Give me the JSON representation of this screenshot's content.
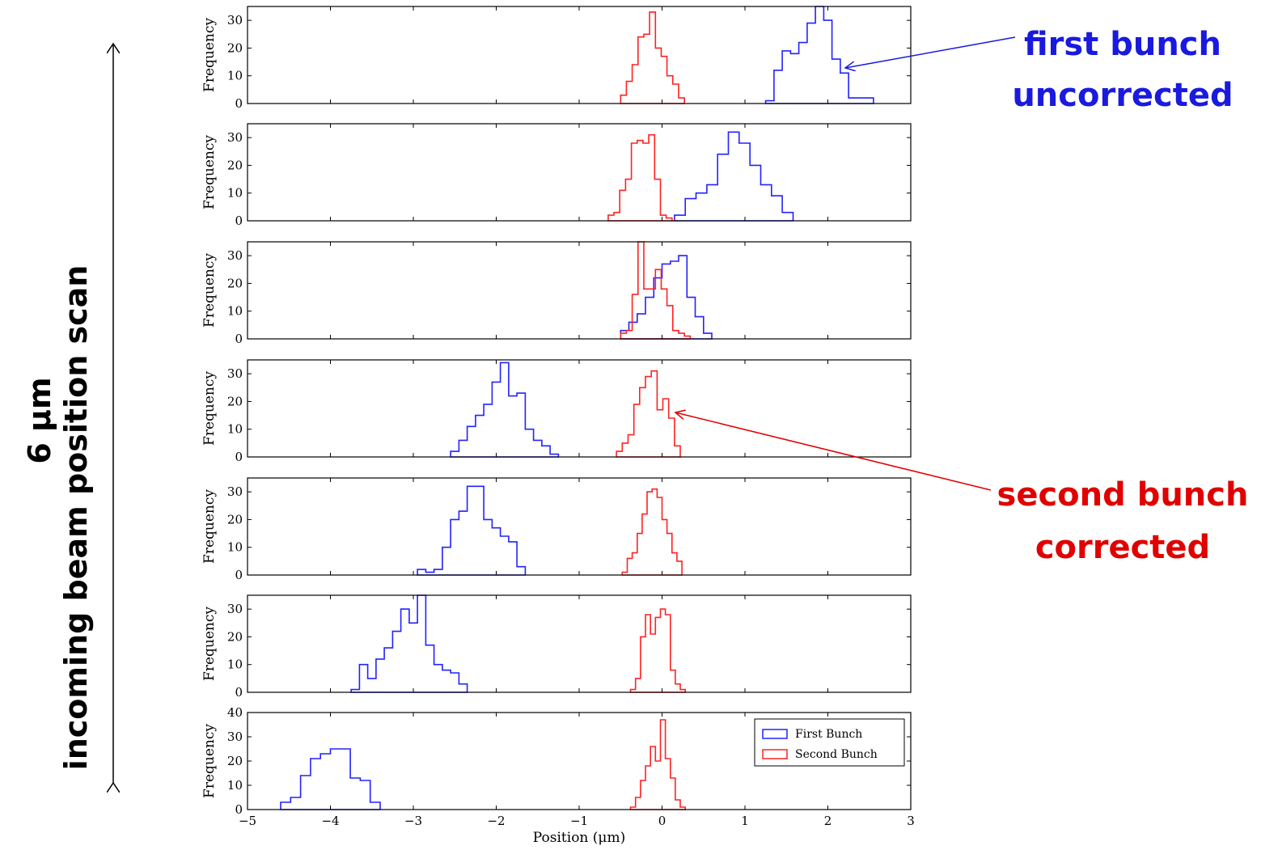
{
  "side_label": {
    "line1": "6 µm",
    "line2": "incoming beam position scan"
  },
  "annotations": {
    "first": {
      "line1": "first bunch",
      "line2": "uncorrected",
      "color": "#1a1adf"
    },
    "second": {
      "line1": "second bunch",
      "line2": "corrected",
      "color": "#e00000"
    }
  },
  "colors": {
    "first": "#2222ff",
    "second": "#ff2222"
  },
  "chart_data": {
    "type": "histogram",
    "xlabel": "Position (μm)",
    "ylabel": "Frequency",
    "xlim": [
      -5,
      3
    ],
    "xticks": [
      "−5",
      "−4",
      "−3",
      "−2",
      "−1",
      "0",
      "1",
      "2",
      "3"
    ],
    "legend": {
      "position": "upper-right",
      "entries": [
        "First Bunch",
        "Second Bunch"
      ]
    },
    "panels": [
      {
        "ylim": [
          0,
          35
        ],
        "yticks": [
          "0",
          "10",
          "20",
          "30"
        ],
        "series": [
          {
            "name": "First Bunch",
            "bins": [
              1.25,
              1.35,
              1.45,
              1.55,
              1.65,
              1.75,
              1.85,
              1.95,
              2.05,
              2.15,
              2.25,
              2.35,
              2.45,
              2.55
            ],
            "counts": [
              1,
              12,
              19,
              18,
              22,
              29,
              35,
              30,
              16,
              11,
              2,
              2,
              2
            ]
          },
          {
            "name": "Second Bunch",
            "bins": [
              -0.5,
              -0.43,
              -0.36,
              -0.29,
              -0.22,
              -0.15,
              -0.08,
              -0.01,
              0.06,
              0.13,
              0.2,
              0.27
            ],
            "counts": [
              3,
              8,
              14,
              24,
              25,
              33,
              20,
              17,
              10,
              7,
              2
            ]
          }
        ]
      },
      {
        "ylim": [
          0,
          35
        ],
        "yticks": [
          "0",
          "10",
          "20",
          "30"
        ],
        "series": [
          {
            "name": "First Bunch",
            "bins": [
              0.15,
              0.28,
              0.41,
              0.54,
              0.67,
              0.8,
              0.93,
              1.06,
              1.19,
              1.32,
              1.45,
              1.58
            ],
            "counts": [
              2,
              8,
              10,
              13,
              24,
              32,
              28,
              20,
              13,
              9,
              3
            ]
          },
          {
            "name": "Second Bunch",
            "bins": [
              -0.65,
              -0.58,
              -0.51,
              -0.44,
              -0.37,
              -0.3,
              -0.23,
              -0.16,
              -0.09,
              -0.02,
              0.05,
              0.12,
              0.19
            ],
            "counts": [
              2,
              3,
              11,
              15,
              28,
              29,
              28,
              31,
              15,
              2,
              1,
              0
            ]
          }
        ]
      },
      {
        "ylim": [
          0,
          35
        ],
        "yticks": [
          "0",
          "10",
          "20",
          "30"
        ],
        "series": [
          {
            "name": "First Bunch",
            "bins": [
              -0.5,
              -0.4,
              -0.3,
              -0.2,
              -0.1,
              0.0,
              0.1,
              0.2,
              0.3,
              0.4,
              0.5,
              0.6
            ],
            "counts": [
              3,
              6,
              9,
              15,
              22,
              27,
              28,
              30,
              15,
              8,
              2
            ]
          },
          {
            "name": "Second Bunch",
            "bins": [
              -0.5,
              -0.43,
              -0.36,
              -0.29,
              -0.22,
              -0.15,
              -0.08,
              -0.01,
              0.06,
              0.13,
              0.2,
              0.27,
              0.34
            ],
            "counts": [
              2,
              3,
              16,
              35,
              18,
              18,
              25,
              18,
              12,
              3,
              2,
              1
            ]
          }
        ]
      },
      {
        "ylim": [
          0,
          35
        ],
        "yticks": [
          "0",
          "10",
          "20",
          "30"
        ],
        "series": [
          {
            "name": "First Bunch",
            "bins": [
              -2.55,
              -2.45,
              -2.35,
              -2.25,
              -2.15,
              -2.05,
              -1.95,
              -1.85,
              -1.75,
              -1.65,
              -1.55,
              -1.45,
              -1.35,
              -1.25
            ],
            "counts": [
              2,
              6,
              11,
              15,
              19,
              27,
              34,
              22,
              23,
              10,
              6,
              4,
              1
            ]
          },
          {
            "name": "Second Bunch",
            "bins": [
              -0.55,
              -0.48,
              -0.41,
              -0.34,
              -0.27,
              -0.2,
              -0.13,
              -0.06,
              0.01,
              0.08,
              0.15,
              0.22
            ],
            "counts": [
              2,
              5,
              8,
              19,
              25,
              29,
              31,
              17,
              21,
              14,
              4
            ]
          }
        ]
      },
      {
        "ylim": [
          0,
          35
        ],
        "yticks": [
          "0",
          "10",
          "20",
          "30"
        ],
        "series": [
          {
            "name": "First Bunch",
            "bins": [
              -2.95,
              -2.85,
              -2.75,
              -2.65,
              -2.55,
              -2.45,
              -2.35,
              -2.25,
              -2.15,
              -2.05,
              -1.95,
              -1.85,
              -1.75,
              -1.65
            ],
            "counts": [
              2,
              1,
              2,
              10,
              20,
              23,
              32,
              32,
              20,
              17,
              14,
              12,
              3
            ]
          },
          {
            "name": "Second Bunch",
            "bins": [
              -0.48,
              -0.42,
              -0.36,
              -0.3,
              -0.24,
              -0.18,
              -0.12,
              -0.06,
              0.0,
              0.06,
              0.12,
              0.18,
              0.24
            ],
            "counts": [
              1,
              6,
              8,
              15,
              22,
              30,
              31,
              28,
              20,
              15,
              8,
              5
            ]
          }
        ]
      },
      {
        "ylim": [
          0,
          35
        ],
        "yticks": [
          "0",
          "10",
          "20",
          "30"
        ],
        "series": [
          {
            "name": "First Bunch",
            "bins": [
              -3.75,
              -3.65,
              -3.55,
              -3.45,
              -3.35,
              -3.25,
              -3.15,
              -3.05,
              -2.95,
              -2.85,
              -2.75,
              -2.65,
              -2.55,
              -2.45,
              -2.35
            ],
            "counts": [
              1,
              10,
              5,
              12,
              16,
              22,
              30,
              25,
              35,
              17,
              10,
              8,
              7,
              3
            ]
          },
          {
            "name": "Second Bunch",
            "bins": [
              -0.38,
              -0.32,
              -0.26,
              -0.2,
              -0.14,
              -0.08,
              -0.02,
              0.04,
              0.1,
              0.16,
              0.22,
              0.28
            ],
            "counts": [
              1,
              5,
              20,
              28,
              21,
              27,
              30,
              28,
              8,
              3,
              1
            ]
          }
        ]
      },
      {
        "ylim": [
          0,
          40
        ],
        "yticks": [
          "0",
          "10",
          "20",
          "30",
          "40"
        ],
        "series": [
          {
            "name": "First Bunch",
            "bins": [
              -4.6,
              -4.48,
              -4.36,
              -4.24,
              -4.12,
              -4.0,
              -3.88,
              -3.76,
              -3.64,
              -3.52,
              -3.4
            ],
            "counts": [
              3,
              5,
              14,
              21,
              23,
              25,
              25,
              13,
              12,
              3
            ]
          },
          {
            "name": "Second Bunch",
            "bins": [
              -0.38,
              -0.32,
              -0.26,
              -0.2,
              -0.14,
              -0.08,
              -0.02,
              0.04,
              0.1,
              0.16,
              0.22,
              0.28
            ],
            "counts": [
              1,
              5,
              12,
              18,
              26,
              20,
              37,
              21,
              13,
              4,
              1
            ]
          }
        ]
      }
    ]
  }
}
